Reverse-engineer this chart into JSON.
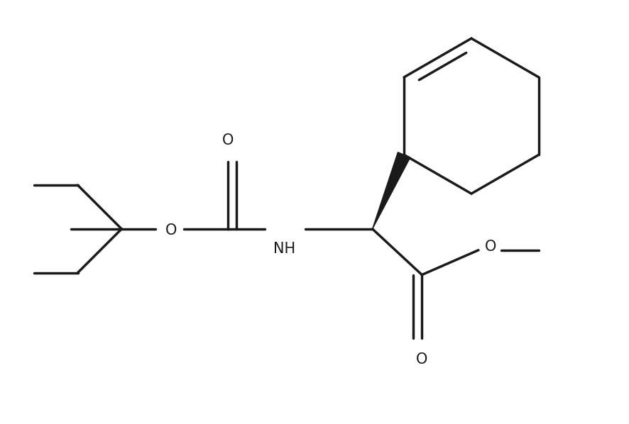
{
  "background_color": "#ffffff",
  "line_color": "#1a1a1a",
  "line_width": 2.5,
  "fig_width": 8.86,
  "fig_height": 5.98,
  "label_fontsize": 15,
  "xlim": [
    0,
    8.86
  ],
  "ylim": [
    0,
    5.98
  ]
}
